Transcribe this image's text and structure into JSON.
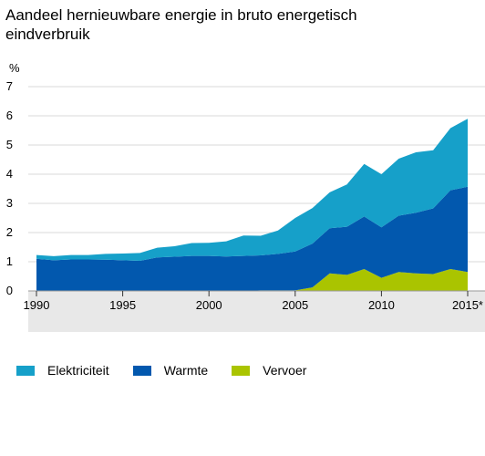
{
  "title": {
    "line1": "Aandeel hernieuwbare energie in bruto energetisch",
    "line2": "eindverbruik"
  },
  "colors": {
    "elektriciteit": "#16a0c9",
    "warmte": "#0258ae",
    "vervoer": "#aac400",
    "axis_band": "#e8e8e8",
    "grid": "#d9d9d9"
  },
  "chart_data": {
    "type": "area",
    "stacked": true,
    "ylabel": "%",
    "xlabel": "",
    "ylim": [
      0,
      7
    ],
    "yticks": [
      "0",
      "1",
      "2",
      "3",
      "4",
      "5",
      "6",
      "7"
    ],
    "xticks": [
      "1990",
      "1995",
      "2000",
      "2005",
      "2010",
      "2015*"
    ],
    "x": [
      1990,
      1991,
      1992,
      1993,
      1994,
      1995,
      1996,
      1997,
      1998,
      1999,
      2000,
      2001,
      2002,
      2003,
      2004,
      2005,
      2006,
      2007,
      2008,
      2009,
      2010,
      2011,
      2012,
      2013,
      2014,
      2015
    ],
    "series": [
      {
        "name": "Vervoer",
        "values": [
          0,
          0,
          0,
          0,
          0,
          0,
          0,
          0,
          0,
          0,
          0,
          0,
          0,
          0.02,
          0.02,
          0.02,
          0.12,
          0.6,
          0.55,
          0.75,
          0.45,
          0.65,
          0.6,
          0.58,
          0.75,
          0.65
        ]
      },
      {
        "name": "Warmte",
        "values": [
          1.1,
          1.05,
          1.08,
          1.08,
          1.07,
          1.05,
          1.03,
          1.15,
          1.17,
          1.2,
          1.2,
          1.18,
          1.2,
          1.2,
          1.25,
          1.33,
          1.5,
          1.55,
          1.65,
          1.8,
          1.73,
          1.93,
          2.08,
          2.25,
          2.7,
          2.92
        ]
      },
      {
        "name": "Elektriciteit",
        "values": [
          0.13,
          0.14,
          0.15,
          0.15,
          0.2,
          0.23,
          0.27,
          0.33,
          0.36,
          0.44,
          0.45,
          0.52,
          0.7,
          0.67,
          0.8,
          1.15,
          1.22,
          1.23,
          1.45,
          1.8,
          1.82,
          1.95,
          2.07,
          1.99,
          2.13,
          2.33
        ]
      }
    ],
    "legend": [
      "Elektriciteit",
      "Warmte",
      "Vervoer"
    ],
    "legend_position": "bottom",
    "grid": true
  }
}
